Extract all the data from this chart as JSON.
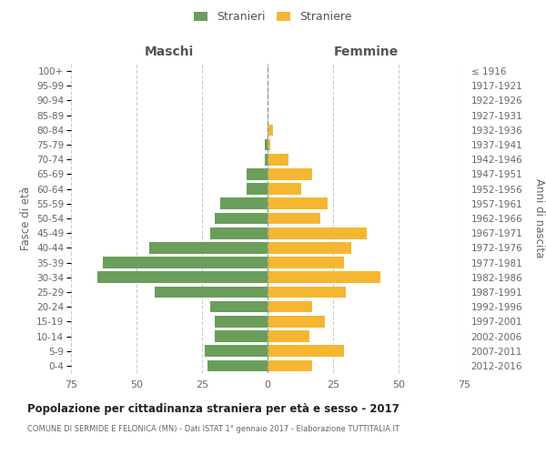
{
  "age_groups": [
    "0-4",
    "5-9",
    "10-14",
    "15-19",
    "20-24",
    "25-29",
    "30-34",
    "35-39",
    "40-44",
    "45-49",
    "50-54",
    "55-59",
    "60-64",
    "65-69",
    "70-74",
    "75-79",
    "80-84",
    "85-89",
    "90-94",
    "95-99",
    "100+"
  ],
  "birth_years": [
    "2012-2016",
    "2007-2011",
    "2002-2006",
    "1997-2001",
    "1992-1996",
    "1987-1991",
    "1982-1986",
    "1977-1981",
    "1972-1976",
    "1967-1971",
    "1962-1966",
    "1957-1961",
    "1952-1956",
    "1947-1951",
    "1942-1946",
    "1937-1941",
    "1932-1936",
    "1927-1931",
    "1922-1926",
    "1917-1921",
    "≤ 1916"
  ],
  "males": [
    23,
    24,
    20,
    20,
    22,
    43,
    65,
    63,
    45,
    22,
    20,
    18,
    8,
    8,
    1,
    1,
    0,
    0,
    0,
    0,
    0
  ],
  "females": [
    17,
    29,
    16,
    22,
    17,
    30,
    43,
    29,
    32,
    38,
    20,
    23,
    13,
    17,
    8,
    1,
    2,
    0,
    0,
    0,
    0
  ],
  "male_color": "#6a9e5a",
  "female_color": "#f5b731",
  "background_color": "#ffffff",
  "grid_color": "#cccccc",
  "title": "Popolazione per cittadinanza straniera per età e sesso - 2017",
  "subtitle": "COMUNE DI SERMIDE E FELONICA (MN) - Dati ISTAT 1° gennaio 2017 - Elaborazione TUTTITALIA.IT",
  "ylabel_left": "Fasce di età",
  "ylabel_right": "Anni di nascita",
  "header_left": "Maschi",
  "header_right": "Femmine",
  "legend_male": "Stranieri",
  "legend_female": "Straniere",
  "xlim": 75
}
